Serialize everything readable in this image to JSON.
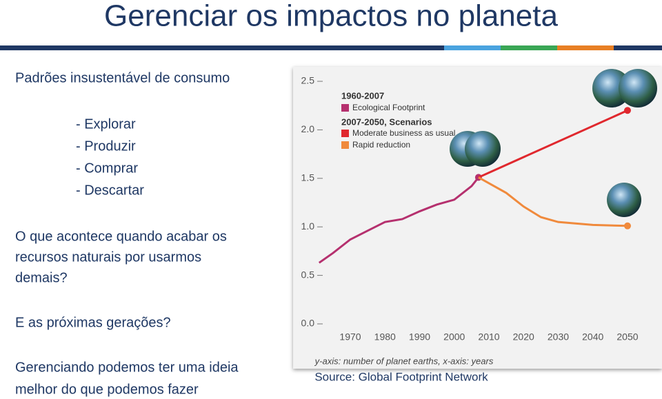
{
  "title": "Gerenciar os impactos no planeta",
  "left": {
    "heading": "Padrões insustentável de consumo",
    "list": [
      "- Explorar",
      "- Produzir",
      "- Comprar",
      "- Descartar"
    ],
    "question_lines": [
      "O que acontece quando acabar os",
      "recursos naturais por usarmos",
      "demais?"
    ],
    "question2": "E as próximas gerações?",
    "closing_lines": [
      "Gerenciando podemos ter uma ideia",
      "melhor do que podemos fazer"
    ]
  },
  "chart_data": {
    "type": "line",
    "legend_titles": [
      "1960-2007",
      "2007-2050, Scenarios"
    ],
    "series": [
      {
        "name": "Ecological Footprint",
        "color": "#b5306e",
        "x": [
          1961,
          1965,
          1970,
          1975,
          1980,
          1985,
          1990,
          1995,
          2000,
          2005,
          2007
        ],
        "values": [
          0.63,
          0.73,
          0.87,
          0.96,
          1.05,
          1.08,
          1.16,
          1.23,
          1.28,
          1.42,
          1.51
        ]
      },
      {
        "name": "Moderate business as usual",
        "color": "#e0282e",
        "x": [
          2007,
          2050
        ],
        "values": [
          1.51,
          2.2
        ]
      },
      {
        "name": "Rapid reduction",
        "color": "#f08a3c",
        "x": [
          2007,
          2015,
          2020,
          2025,
          2030,
          2040,
          2050
        ],
        "values": [
          1.51,
          1.35,
          1.21,
          1.1,
          1.05,
          1.02,
          1.01
        ]
      }
    ],
    "xlim": [
      1960,
      2055
    ],
    "ylim": [
      0,
      2.5
    ],
    "xticks": [
      1970,
      1980,
      1990,
      2000,
      2010,
      2020,
      2030,
      2040,
      2050
    ],
    "yticks": [
      {
        "value": 0,
        "label": "0.0"
      },
      {
        "value": 0.5,
        "label": "0.5"
      },
      {
        "value": 1,
        "label": "1.0"
      },
      {
        "value": 1.5,
        "label": "1.5"
      },
      {
        "value": 2,
        "label": "2.0"
      },
      {
        "value": 2.5,
        "label": "2.5"
      }
    ],
    "caption": "y-axis: number of planet earths, x-axis: years",
    "source": "Source: Global Footprint Network"
  }
}
